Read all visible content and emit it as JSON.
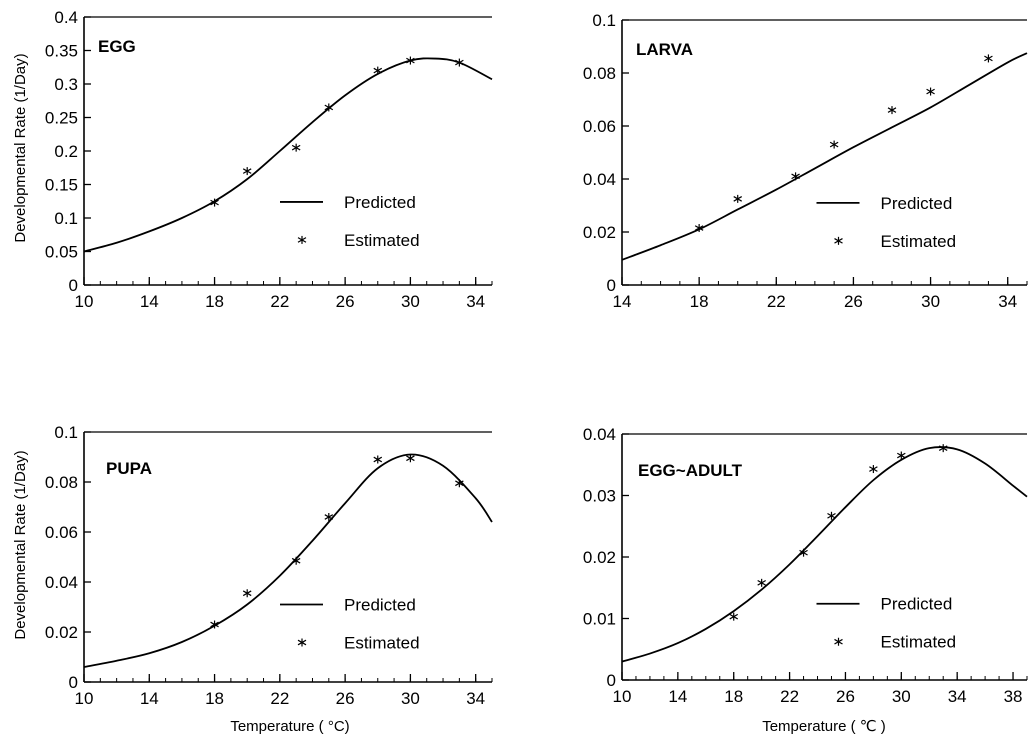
{
  "figure": {
    "ylabel": "Developmental Rate (1/Day)",
    "xlabel": "Temperature ( °C)",
    "xlabel_right": "Temperature ( ℃ )",
    "legend": {
      "predicted": "Predicted",
      "estimated": "Estimated"
    }
  },
  "chart_data": [
    {
      "type": "line",
      "title": "EGG",
      "xlim": [
        10,
        35
      ],
      "ylim": [
        0,
        0.4
      ],
      "xticks": [
        10,
        14,
        18,
        22,
        26,
        30,
        34
      ],
      "yticks": [
        0,
        0.05,
        0.1,
        0.15,
        0.2,
        0.25,
        0.3,
        0.35,
        0.4
      ],
      "ytick_labels": [
        "0",
        "0.05",
        "0.1",
        "0.15",
        "0.2",
        "0.25",
        "0.3",
        "0.35",
        "0.4"
      ],
      "legend_position": "center-right",
      "series": [
        {
          "name": "Predicted",
          "style": "line",
          "x": [
            10,
            12,
            14,
            16,
            18,
            20,
            22,
            24,
            26,
            28,
            30,
            31.5,
            33,
            35
          ],
          "y": [
            0.05,
            0.063,
            0.08,
            0.1,
            0.125,
            0.158,
            0.2,
            0.243,
            0.283,
            0.315,
            0.335,
            0.338,
            0.332,
            0.307
          ]
        },
        {
          "name": "Estimated",
          "style": "asterisk",
          "x": [
            18,
            20,
            23,
            25,
            28,
            30,
            33
          ],
          "y": [
            0.123,
            0.17,
            0.205,
            0.265,
            0.32,
            0.335,
            0.332
          ]
        }
      ]
    },
    {
      "type": "line",
      "title": "LARVA",
      "xlim": [
        14,
        35
      ],
      "ylim": [
        0,
        0.1
      ],
      "xticks": [
        14,
        18,
        22,
        26,
        30,
        34
      ],
      "yticks": [
        0,
        0.02,
        0.04,
        0.06,
        0.08,
        0.1
      ],
      "ytick_labels": [
        "0",
        "0.02",
        "0.04",
        "0.06",
        "0.08",
        "0.1"
      ],
      "legend_position": "center-right",
      "series": [
        {
          "name": "Predicted",
          "style": "line",
          "x": [
            14,
            16,
            18,
            20,
            22,
            24,
            26,
            28,
            30,
            32,
            34,
            35
          ],
          "y": [
            0.0095,
            0.015,
            0.021,
            0.0285,
            0.036,
            0.044,
            0.052,
            0.0595,
            0.067,
            0.0755,
            0.084,
            0.0875
          ]
        },
        {
          "name": "Estimated",
          "style": "asterisk",
          "x": [
            18,
            20,
            23,
            25,
            28,
            30,
            33
          ],
          "y": [
            0.0215,
            0.0325,
            0.041,
            0.053,
            0.066,
            0.073,
            0.0855
          ]
        }
      ]
    },
    {
      "type": "line",
      "title": "PUPA",
      "xlim": [
        10,
        35
      ],
      "ylim": [
        0,
        0.1
      ],
      "xticks": [
        10,
        14,
        18,
        22,
        26,
        30,
        34
      ],
      "yticks": [
        0,
        0.02,
        0.04,
        0.06,
        0.08,
        0.1
      ],
      "ytick_labels": [
        "0",
        "0.02",
        "0.04",
        "0.06",
        "0.08",
        "0.1"
      ],
      "legend_position": "center-right",
      "series": [
        {
          "name": "Predicted",
          "style": "line",
          "x": [
            10,
            12,
            14,
            16,
            18,
            20,
            22,
            24,
            26,
            28,
            30,
            32,
            34,
            35
          ],
          "y": [
            0.006,
            0.0085,
            0.0115,
            0.016,
            0.0225,
            0.031,
            0.0425,
            0.0565,
            0.0715,
            0.0855,
            0.091,
            0.0865,
            0.0735,
            0.064
          ]
        },
        {
          "name": "Estimated",
          "style": "asterisk",
          "x": [
            18,
            20,
            23,
            25,
            28,
            30,
            33
          ],
          "y": [
            0.023,
            0.0355,
            0.0485,
            0.066,
            0.089,
            0.0895,
            0.0795
          ]
        }
      ]
    },
    {
      "type": "line",
      "title": "EGG~ADULT",
      "xlim": [
        10,
        39
      ],
      "ylim": [
        0,
        0.04
      ],
      "xticks": [
        10,
        14,
        18,
        22,
        26,
        30,
        34,
        38
      ],
      "yticks": [
        0,
        0.01,
        0.02,
        0.03,
        0.04
      ],
      "ytick_labels": [
        "0",
        "0.01",
        "0.02",
        "0.03",
        "0.04"
      ],
      "legend_position": "center-right",
      "series": [
        {
          "name": "Predicted",
          "style": "line",
          "x": [
            10,
            12,
            14,
            16,
            18,
            20,
            22,
            24,
            26,
            28,
            30,
            32,
            34,
            36,
            38,
            39
          ],
          "y": [
            0.003,
            0.0043,
            0.006,
            0.0083,
            0.0112,
            0.0147,
            0.0188,
            0.0234,
            0.0281,
            0.0325,
            0.0358,
            0.0377,
            0.0375,
            0.0352,
            0.0316,
            0.0298
          ]
        },
        {
          "name": "Estimated",
          "style": "asterisk",
          "x": [
            18,
            20,
            23,
            25,
            28,
            30,
            33
          ],
          "y": [
            0.0103,
            0.0158,
            0.0207,
            0.0267,
            0.0343,
            0.0365,
            0.0377
          ]
        }
      ]
    }
  ]
}
